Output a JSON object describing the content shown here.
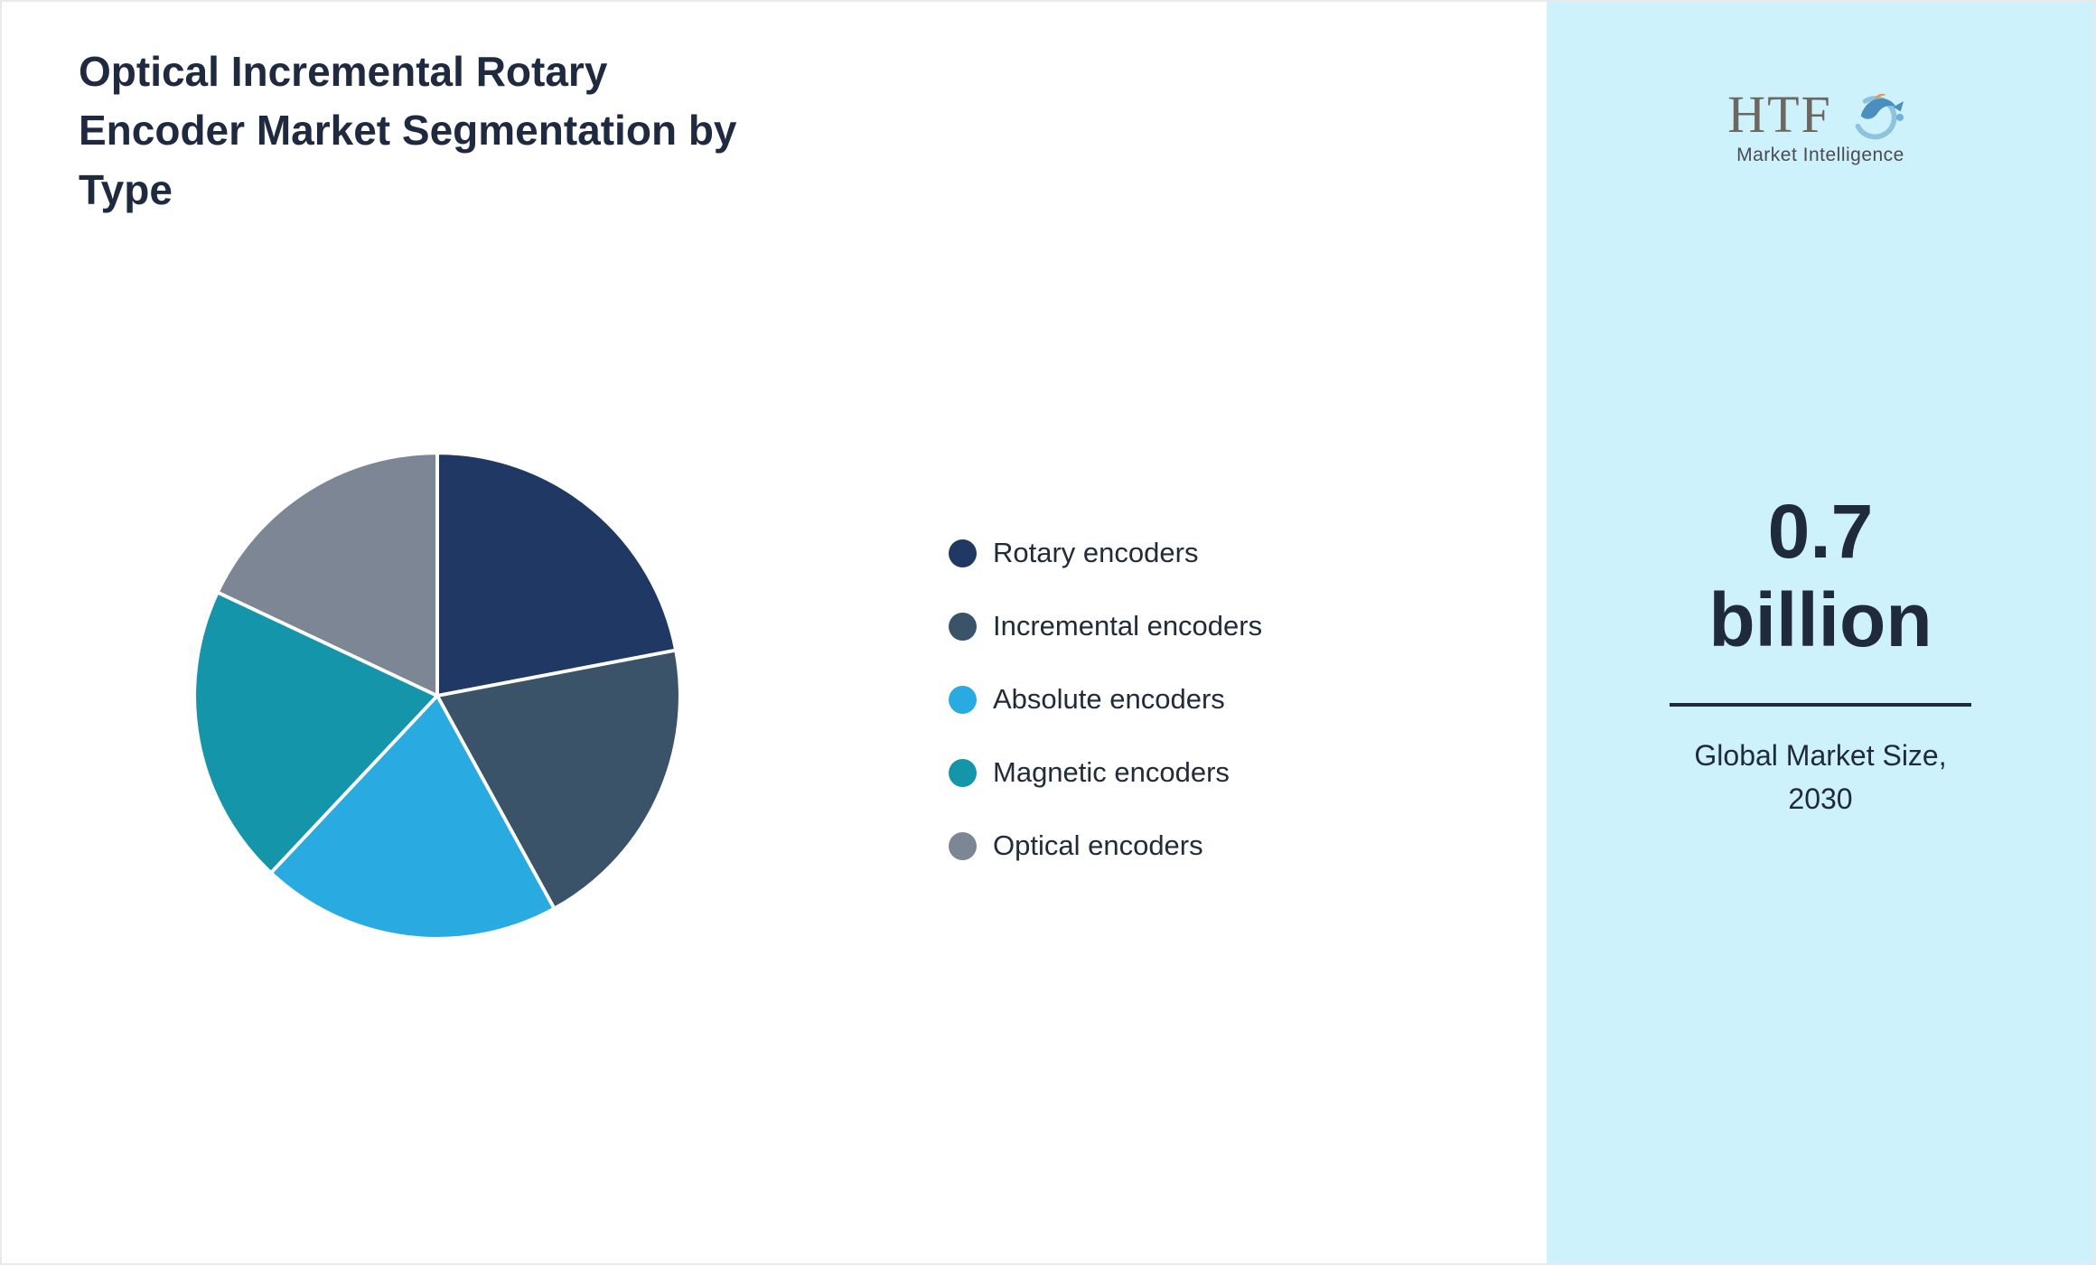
{
  "title": "Optical Incremental Rotary Encoder Market Segmentation by Type",
  "title_lines": [
    "Optical Incremental Rotary",
    "Encoder Market Segmentation by",
    "Type"
  ],
  "chart_data": {
    "type": "pie",
    "title": "Optical Incremental Rotary Encoder Market Segmentation by Type",
    "labels": [
      "Rotary encoders",
      "Incremental encoders",
      "Absolute encoders",
      "Magnetic encoders",
      "Optical encoders"
    ],
    "values": [
      22,
      20,
      20,
      20,
      18
    ],
    "values_unit": "%",
    "colors": [
      "#1f3864",
      "#3b5368",
      "#29abe2",
      "#1595aa",
      "#7d8695"
    ],
    "start_angle_deg": 0,
    "direction": "clockwise",
    "legend_position": "right",
    "slice_border_color": "#ffffff"
  },
  "right_panel": {
    "background": "#cdf2fb",
    "logo": {
      "brand": "HTF",
      "subtitle": "Market Intelligence"
    },
    "stat_value_line1": "0.7",
    "stat_value_line2": "billion",
    "stat_label_line1": "Global Market Size,",
    "stat_label_line2": "2030"
  }
}
